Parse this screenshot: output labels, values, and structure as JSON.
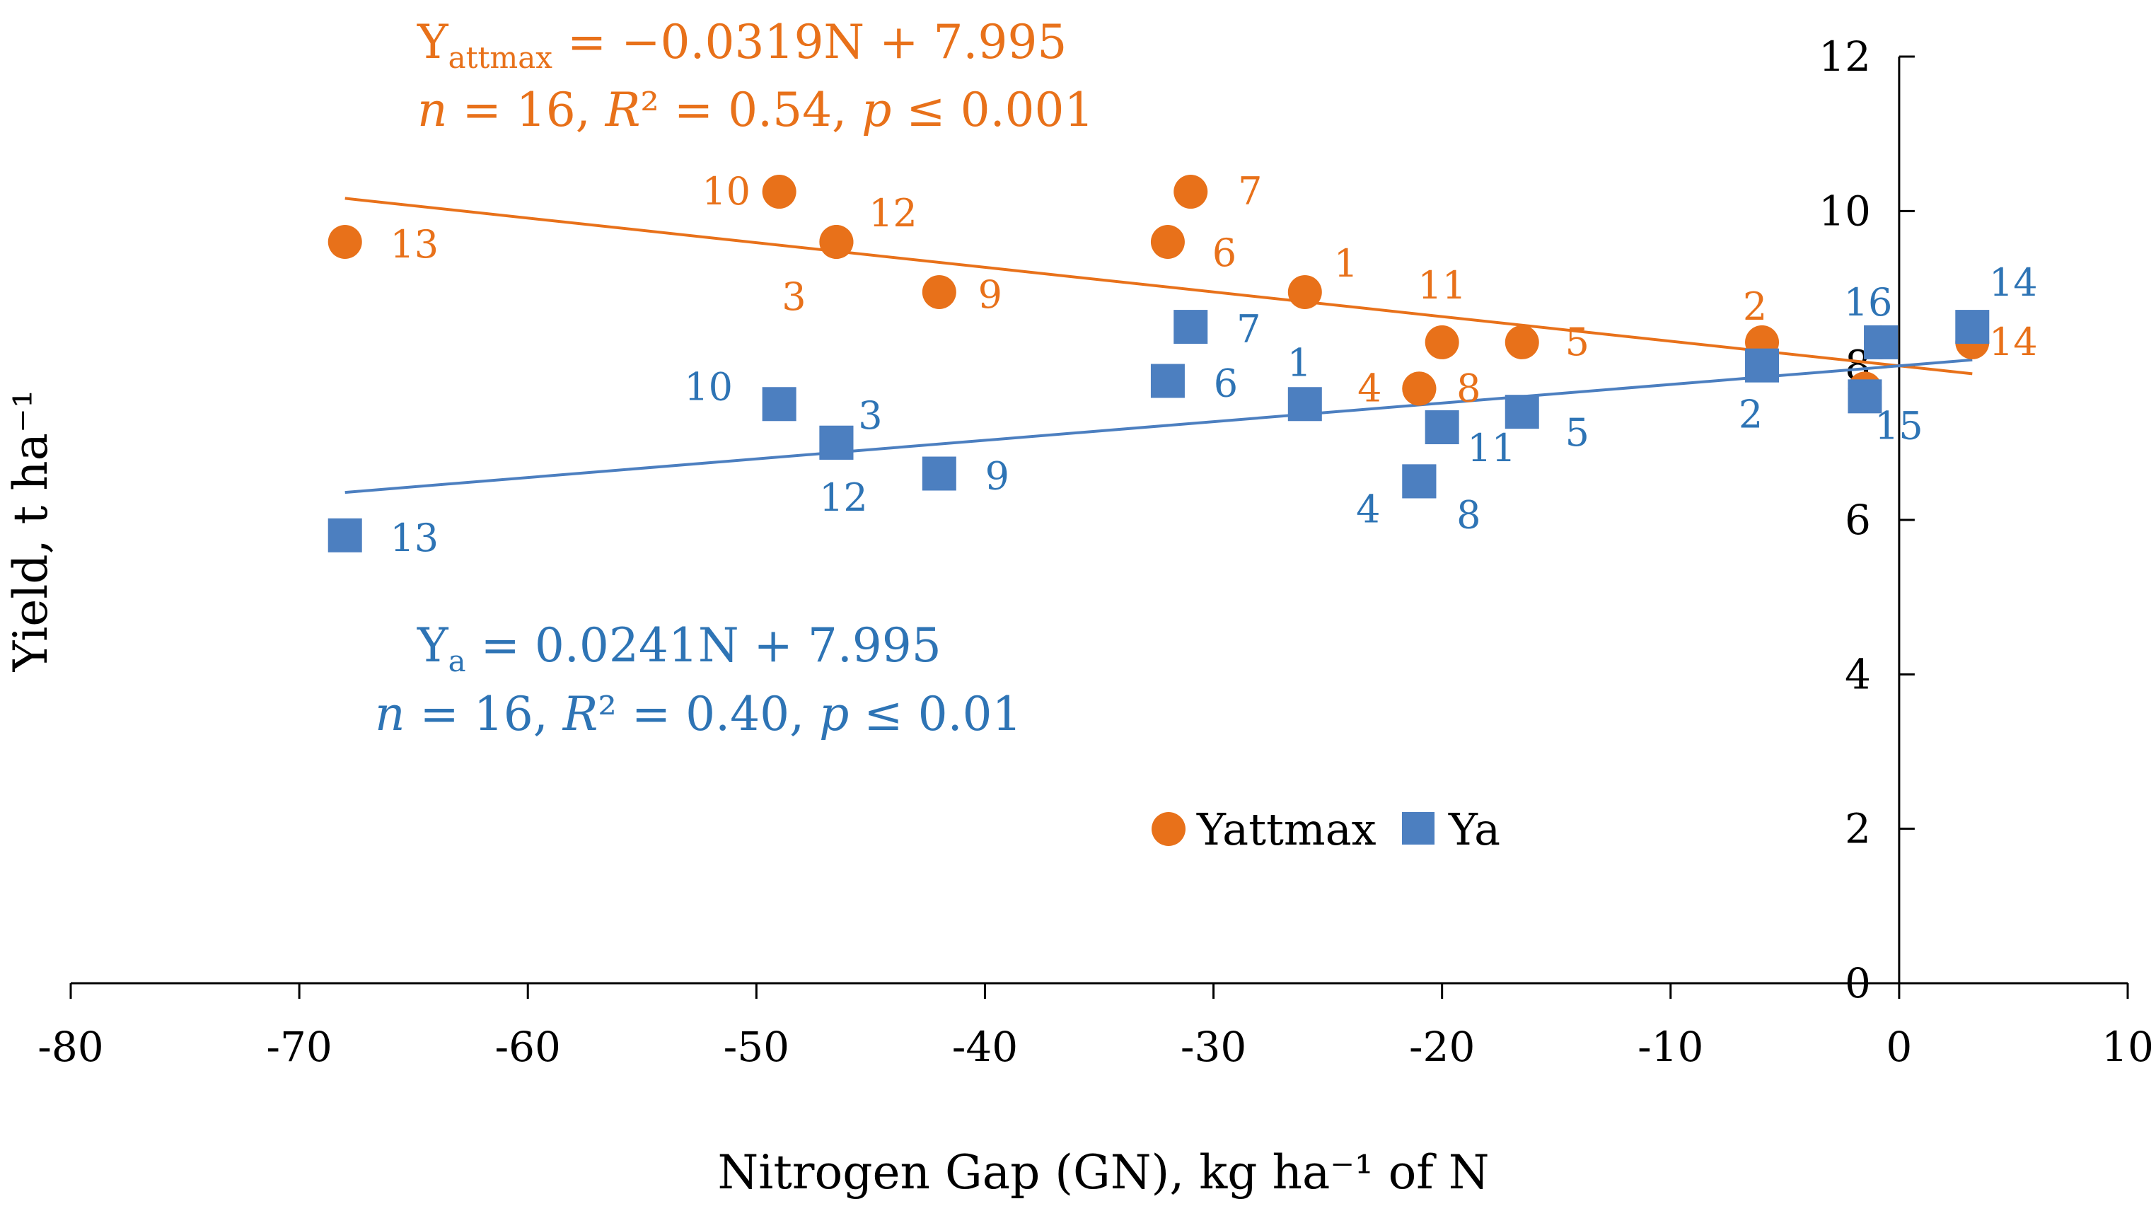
{
  "chart_data": {
    "type": "scatter",
    "title": "",
    "xlabel": "Nitrogen Gap (GN), kg ha⁻¹ of N",
    "ylabel": "Yield, t ha⁻¹",
    "xlim": [
      -80,
      10
    ],
    "ylim": [
      0,
      12
    ],
    "xticks": [
      -80,
      -70,
      -60,
      -50,
      -40,
      -30,
      -20,
      -10,
      0,
      10
    ],
    "yticks": [
      0,
      2,
      4,
      6,
      8,
      10,
      12
    ],
    "colors": {
      "yattmax": "#E8711A",
      "ya": "#4C7FC0",
      "ya_text": "#2E74B5"
    },
    "legend": {
      "position": "center",
      "items": [
        "Yattmax",
        "Ya"
      ]
    },
    "series": [
      {
        "name": "Yattmax",
        "marker": "circle",
        "points": [
          {
            "label": "1",
            "x": -26,
            "y": 8.95
          },
          {
            "label": "2",
            "x": -6,
            "y": 8.3
          },
          {
            "label": "3",
            "x": -46.5,
            "y": 9.6
          },
          {
            "label": "4",
            "x": -21,
            "y": 7.7
          },
          {
            "label": "5",
            "x": -16.5,
            "y": 8.3
          },
          {
            "label": "6",
            "x": -32,
            "y": 9.6
          },
          {
            "label": "7",
            "x": -31,
            "y": 10.25
          },
          {
            "label": "8",
            "x": -21,
            "y": 7.7
          },
          {
            "label": "9",
            "x": -42,
            "y": 8.95
          },
          {
            "label": "10",
            "x": -49,
            "y": 10.25
          },
          {
            "label": "11",
            "x": -20,
            "y": 8.3
          },
          {
            "label": "12",
            "x": -46.5,
            "y": 9.6
          },
          {
            "label": "13",
            "x": -68,
            "y": 9.6
          },
          {
            "label": "14",
            "x": 3.2,
            "y": 8.3
          },
          {
            "label": "15",
            "x": -1.5,
            "y": 7.7
          },
          {
            "label": "16",
            "x": -0.8,
            "y": 8.3
          }
        ],
        "trendline": {
          "slope": -0.0319,
          "intercept": 7.995,
          "x_range": [
            -68,
            3.2
          ]
        },
        "equation": {
          "lhs": "Y",
          "sub": "attmax",
          "rhs": " = −0.0319N + 7.995",
          "stats": [
            "n",
            " = 16, ",
            "R",
            "² = 0.54, ",
            "p",
            " ≤ 0.001"
          ]
        }
      },
      {
        "name": "Ya",
        "marker": "square",
        "points": [
          {
            "label": "1",
            "x": -26,
            "y": 7.5
          },
          {
            "label": "2",
            "x": -6,
            "y": 8.0
          },
          {
            "label": "3",
            "x": -46.5,
            "y": 7.0
          },
          {
            "label": "4",
            "x": -21,
            "y": 6.5
          },
          {
            "label": "5",
            "x": -16.5,
            "y": 7.4
          },
          {
            "label": "6",
            "x": -32,
            "y": 7.8
          },
          {
            "label": "7",
            "x": -31,
            "y": 8.5
          },
          {
            "label": "8",
            "x": -21,
            "y": 6.5
          },
          {
            "label": "9",
            "x": -42,
            "y": 6.6
          },
          {
            "label": "10",
            "x": -49,
            "y": 7.5
          },
          {
            "label": "11",
            "x": -20,
            "y": 7.2
          },
          {
            "label": "12",
            "x": -46.5,
            "y": 7.0
          },
          {
            "label": "13",
            "x": -68,
            "y": 5.8
          },
          {
            "label": "14",
            "x": 3.2,
            "y": 8.5
          },
          {
            "label": "15",
            "x": -1.5,
            "y": 7.6
          },
          {
            "label": "16",
            "x": -0.8,
            "y": 8.3
          }
        ],
        "trendline": {
          "slope": 0.0241,
          "intercept": 7.995,
          "x_range": [
            -68,
            3.2
          ]
        },
        "equation": {
          "lhs": "Y",
          "sub": "a",
          "rhs": " = 0.0241N + 7.995",
          "stats": [
            "n",
            " = 16, ",
            "R",
            "² = 0.40, ",
            "p",
            " ≤ 0.01"
          ]
        }
      }
    ]
  }
}
